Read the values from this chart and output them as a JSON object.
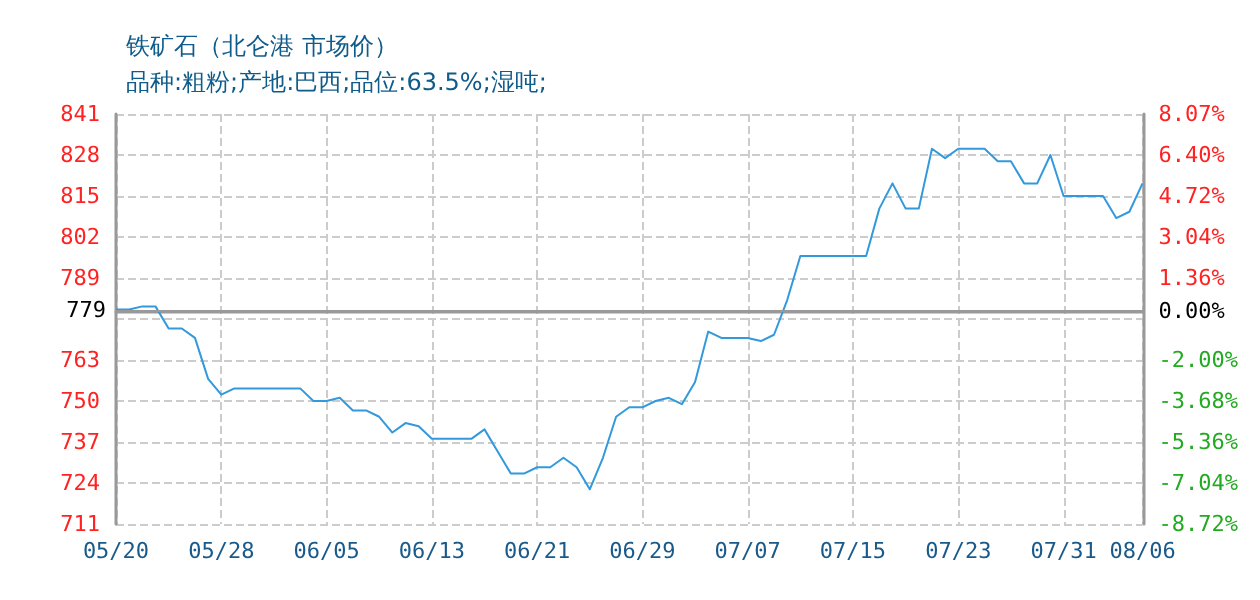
{
  "chart_data": {
    "type": "line",
    "title": "铁矿石（北仑港 市场价）",
    "subtitle": "品种:粗粉;产地:巴西;品位:63.5%;湿吨;",
    "x": [
      "--05-20",
      "--05-21",
      "--05-22",
      "--05-23",
      "--05-24",
      "--05-25",
      "--05-26",
      "--05-27",
      "--05-28",
      "--05-29",
      "--06-03",
      "--06-04",
      "--06-05",
      "--06-06",
      "--06-07",
      "--06-08",
      "--06-09",
      "--06-10",
      "--06-11",
      "--06-12",
      "--06-13",
      "--06-16",
      "--06-17",
      "--06-18",
      "--06-19",
      "--06-20",
      "--06-21",
      "--06-22",
      "--06-23",
      "--06-24",
      "--06-25",
      "--06-26",
      "--06-27",
      "--06-28",
      "--06-29",
      "--06-30",
      "--07-01",
      "--07-02",
      "--07-03",
      "--07-04",
      "--07-05",
      "--07-07",
      "--07-08",
      "--07-09",
      "--07-10",
      "--07-11",
      "--07-16",
      "--07-17",
      "--07-18",
      "--07-19",
      "--07-20",
      "--07-21",
      "--07-22",
      "--07-23",
      "--07-25",
      "--07-26",
      "--07-27",
      "--07-28",
      "--07-29",
      "--07-30",
      "--07-31",
      "--08-03",
      "--08-04",
      "--08-05",
      "--08-06"
    ],
    "series": [
      {
        "color": "#3399dd",
        "values": [
          779,
          779,
          780,
          780,
          773,
          773,
          770,
          757,
          752,
          754,
          754,
          750,
          750,
          751,
          747,
          747,
          745,
          740,
          743,
          742,
          738,
          738,
          741,
          734,
          727,
          727,
          729,
          729,
          732,
          729,
          722,
          732,
          745,
          748,
          748,
          750,
          751,
          749,
          756,
          772,
          770,
          770,
          769,
          771,
          782,
          796,
          796,
          811,
          819,
          811,
          811,
          830,
          827,
          830,
          830,
          826,
          826,
          819,
          819,
          828,
          815,
          815,
          808,
          810,
          819
        ]
      }
    ],
    "xlim": [
      "--05-20",
      "--08-06"
    ],
    "xticks": [
      {
        "value": "--05-20",
        "label": "05/20"
      },
      {
        "value": "--05-28",
        "label": "05/28"
      },
      {
        "value": "--06-05",
        "label": "06/05"
      },
      {
        "value": "--06-13",
        "label": "06/13"
      },
      {
        "value": "--06-21",
        "label": "06/21"
      },
      {
        "value": "--06-29",
        "label": "06/29"
      },
      {
        "value": "--07-07",
        "label": "07/07"
      },
      {
        "value": "--07-15",
        "label": "07/15"
      },
      {
        "value": "--07-23",
        "label": "07/23"
      },
      {
        "value": "--07-31",
        "label": "07/31"
      },
      {
        "value": "--08-06",
        "label": "08/06"
      }
    ],
    "ylim": [
      711,
      841
    ],
    "yticks": [
      841,
      828,
      815,
      802,
      789,
      {
        "value": 776,
        "label": null
      },
      763,
      750,
      737,
      724,
      711
    ],
    "y2lim": [
      -8.72,
      8.07
    ],
    "y2ticks": [
      {
        "value": 8.07,
        "label": "8.07%"
      },
      {
        "value": 6.4,
        "label": "6.40%"
      },
      {
        "value": 4.72,
        "label": "4.72%"
      },
      {
        "value": 3.04,
        "label": "3.04%"
      },
      {
        "value": 1.36,
        "label": "1.36%"
      },
      {
        "value": 0,
        "label": "0.00%"
      },
      {
        "value": -2,
        "label": "-2.00%"
      },
      {
        "value": -3.68,
        "label": "-3.68%"
      },
      {
        "value": -5.36,
        "label": "-5.36%"
      },
      {
        "value": -7.04,
        "label": "-7.04%"
      },
      {
        "value": -8.72,
        "label": "-8.72%"
      }
    ],
    "ref_lines": [
      {
        "axis": "y",
        "value": 779,
        "label": "779",
        "color": "#999999"
      }
    ],
    "grid": true,
    "marker": "none",
    "line_style": "solid"
  }
}
